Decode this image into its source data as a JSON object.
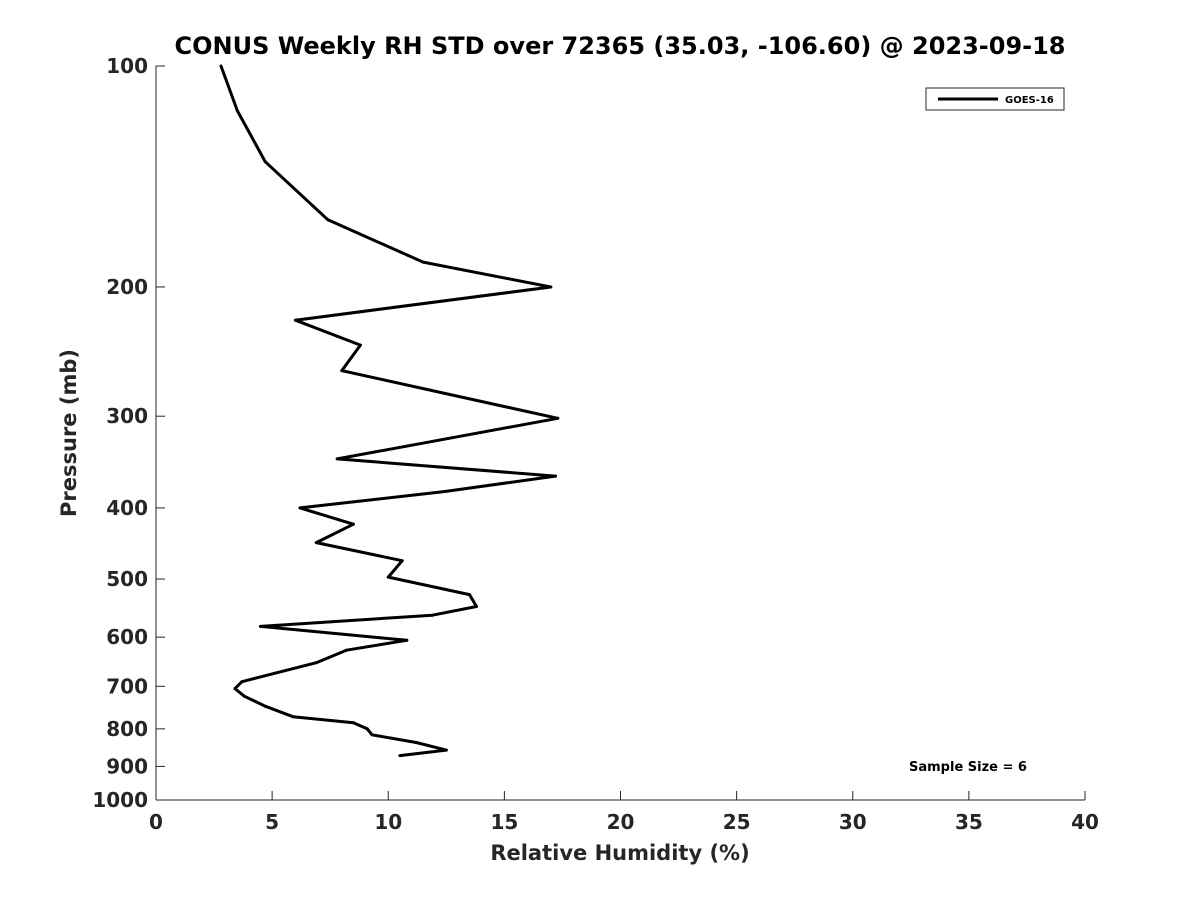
{
  "chart_data": {
    "type": "line",
    "title": "CONUS Weekly RH STD over 72365 (35.03, -106.60) @ 2023-09-18",
    "xlabel": "Relative Humidity (%)",
    "ylabel": "Pressure (mb)",
    "xlim": [
      0,
      40
    ],
    "ylim": [
      1000,
      100
    ],
    "yscale": "log",
    "y_reversed": true,
    "grid": false,
    "legend_position": "top-right",
    "x_ticks": [
      "0",
      "5",
      "10",
      "15",
      "20",
      "25",
      "30",
      "35",
      "40"
    ],
    "y_ticks": [
      "100",
      "200",
      "300",
      "400",
      "500",
      "600",
      "700",
      "800",
      "900",
      "1000"
    ],
    "annotation": "Sample Size = 6",
    "series": [
      {
        "name": "GOES-16",
        "color": "#000000",
        "x": [
          2.8,
          3.5,
          4.7,
          7.4,
          11.5,
          17.0,
          6.0,
          8.8,
          8.0,
          13.7,
          17.3,
          7.8,
          17.2,
          12.4,
          6.2,
          8.5,
          6.9,
          10.6,
          10.0,
          13.5,
          13.8,
          11.9,
          4.5,
          10.8,
          8.2,
          6.9,
          3.7,
          3.4,
          3.8,
          4.7,
          5.9,
          8.5,
          9.1,
          9.3,
          11.2,
          12.5,
          10.5
        ],
        "y": [
          100,
          115,
          135,
          162,
          185,
          200,
          222,
          240,
          260,
          285,
          302,
          343,
          362,
          380,
          400,
          421,
          446,
          472,
          497,
          525,
          545,
          560,
          580,
          606,
          625,
          650,
          690,
          705,
          722,
          745,
          770,
          785,
          800,
          815,
          835,
          855,
          870
        ]
      }
    ]
  }
}
